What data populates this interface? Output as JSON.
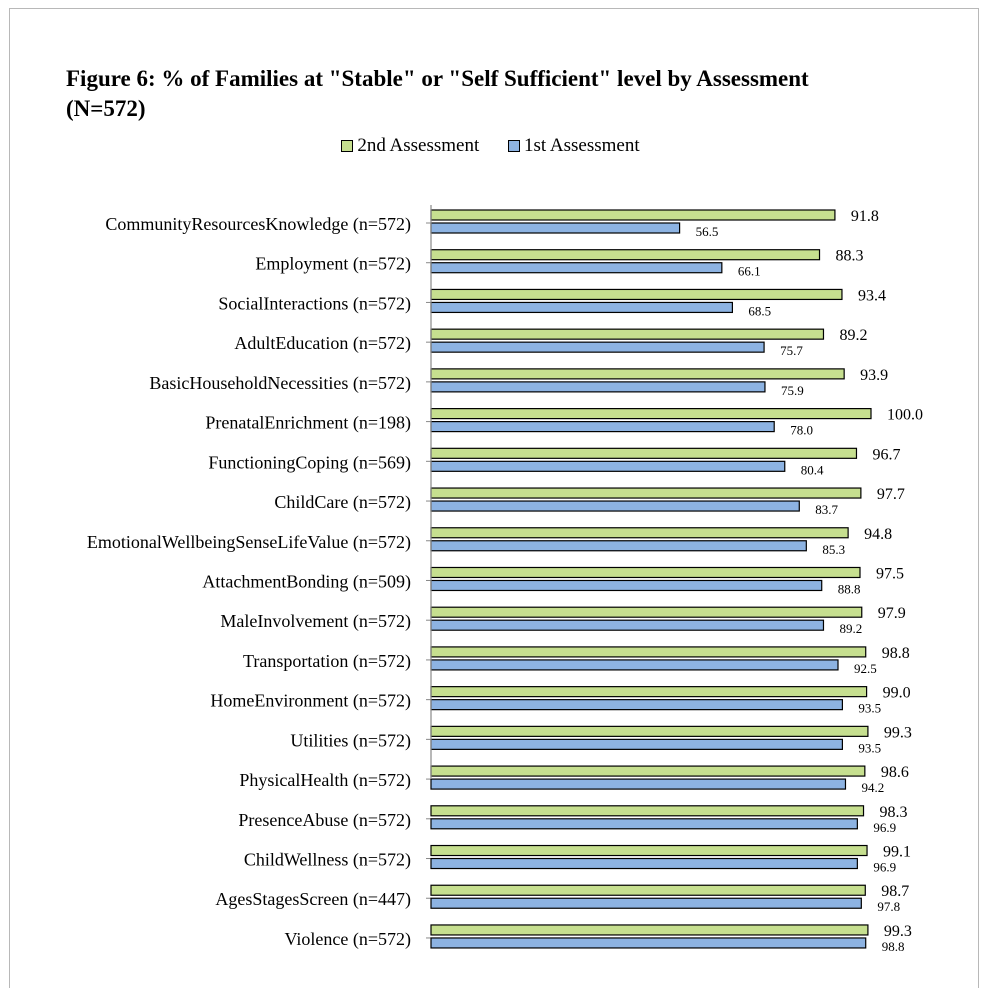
{
  "chart_data": {
    "type": "bar",
    "orientation": "horizontal",
    "title": "Figure 6: % of Families at \"Stable\" or \"Self Sufficient\" level by Assessment (N=572)",
    "legend_position": "top",
    "grid": false,
    "xlim": [
      0,
      100
    ],
    "categories": [
      "CommunityResourcesKnowledge (n=572)",
      "Employment (n=572)",
      "SocialInteractions (n=572)",
      "AdultEducation (n=572)",
      "BasicHouseholdNecessities (n=572)",
      "PrenatalEnrichment (n=198)",
      "FunctioningCoping (n=569)",
      "ChildCare (n=572)",
      "EmotionalWellbeingSenseLifeValue (n=572)",
      "AttachmentBonding (n=509)",
      "MaleInvolvement (n=572)",
      "Transportation (n=572)",
      "HomeEnvironment (n=572)",
      "Utilities (n=572)",
      "PhysicalHealth (n=572)",
      "PresenceAbuse (n=572)",
      "ChildWellness (n=572)",
      "AgesStagesScreen (n=447)",
      "Violence (n=572)"
    ],
    "series": [
      {
        "name": "2nd Assessment",
        "color": "#c6df8f",
        "values": [
          91.8,
          88.3,
          93.4,
          89.2,
          93.9,
          100.0,
          96.7,
          97.7,
          94.8,
          97.5,
          97.9,
          98.8,
          99.0,
          99.3,
          98.6,
          98.3,
          99.1,
          98.7,
          99.3
        ],
        "labels": [
          "91.8",
          "88.3",
          "93.4",
          "89.2",
          "93.9",
          "100.0",
          "96.7",
          "97.7",
          "94.8",
          "97.5",
          "97.9",
          "98.8",
          "99.0",
          "99.3",
          "98.6",
          "98.3",
          "99.1",
          "98.7",
          "99.3"
        ]
      },
      {
        "name": "1st Assessment",
        "color": "#8db3e2",
        "values": [
          56.5,
          66.1,
          68.5,
          75.7,
          75.9,
          78.0,
          80.4,
          83.7,
          85.3,
          88.8,
          89.2,
          92.5,
          93.5,
          93.5,
          94.2,
          96.9,
          96.9,
          97.8,
          98.8
        ],
        "labels": [
          "56.5",
          "66.1",
          "68.5",
          "75.7",
          "75.9",
          "78.0",
          "80.4",
          "83.7",
          "85.3",
          "88.8",
          "89.2",
          "92.5",
          "93.5",
          "93.5",
          "94.2",
          "96.9",
          "96.9",
          "97.8",
          "98.8"
        ]
      }
    ]
  }
}
